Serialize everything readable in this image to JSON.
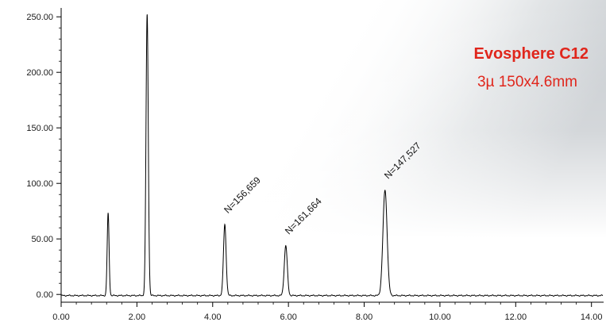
{
  "colors": {
    "trace": "#000000",
    "axis": "#000000",
    "annotation": "#e0261c",
    "background_wash": "#d2d5d8"
  },
  "annotation": {
    "column_name": "Evosphere C12",
    "column_spec": "3µ 150x4.6mm"
  },
  "chart_data": {
    "type": "line",
    "title": "",
    "xlabel": "",
    "ylabel": "",
    "xlim": [
      0,
      14.3
    ],
    "ylim": [
      -7,
      258
    ],
    "x_ticks": [
      "0.00",
      "2.00",
      "4.00",
      "6.00",
      "8.00",
      "10.00",
      "12.00",
      "14.00"
    ],
    "y_ticks": [
      "0.00",
      "50.00",
      "100.00",
      "150.00",
      "200.00",
      "250.00"
    ],
    "grid": false,
    "baseline": -1,
    "peaks": [
      {
        "x": 1.24,
        "height": 74,
        "width": 0.025,
        "label": ""
      },
      {
        "x": 2.27,
        "height": 253,
        "width": 0.03,
        "label": ""
      },
      {
        "x": 4.32,
        "height": 64,
        "width": 0.035,
        "label": "N=156,659"
      },
      {
        "x": 5.93,
        "height": 45,
        "width": 0.04,
        "label": "N=161,664"
      },
      {
        "x": 8.55,
        "height": 95,
        "width": 0.055,
        "label": "N=147,527"
      }
    ]
  }
}
